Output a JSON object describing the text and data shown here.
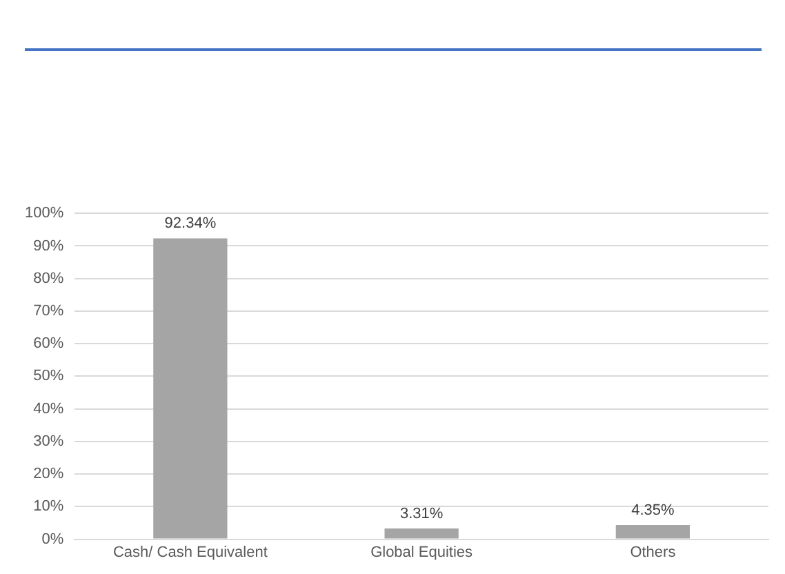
{
  "chart_data": {
    "type": "bar",
    "categories": [
      "Cash/ Cash Equivalent",
      "Global Equities",
      "Others"
    ],
    "values": [
      92.34,
      3.31,
      4.35
    ],
    "color": "#a5a5a5",
    "value_labels": [
      "92.34%",
      "3.31%",
      "4.35%"
    ],
    "ylim": [
      0,
      100
    ],
    "yticks": [
      {
        "value": 0,
        "label": "0%"
      },
      {
        "value": 10,
        "label": "10%"
      },
      {
        "value": 20,
        "label": "20%"
      },
      {
        "value": 30,
        "label": "30%"
      },
      {
        "value": 40,
        "label": "40%"
      },
      {
        "value": 50,
        "label": "50%"
      },
      {
        "value": 60,
        "label": "60%"
      },
      {
        "value": 70,
        "label": "70%"
      },
      {
        "value": 80,
        "label": "80%"
      },
      {
        "value": 90,
        "label": "90%"
      },
      {
        "value": 100,
        "label": "100%"
      }
    ],
    "grid": "y",
    "legend": false
  }
}
